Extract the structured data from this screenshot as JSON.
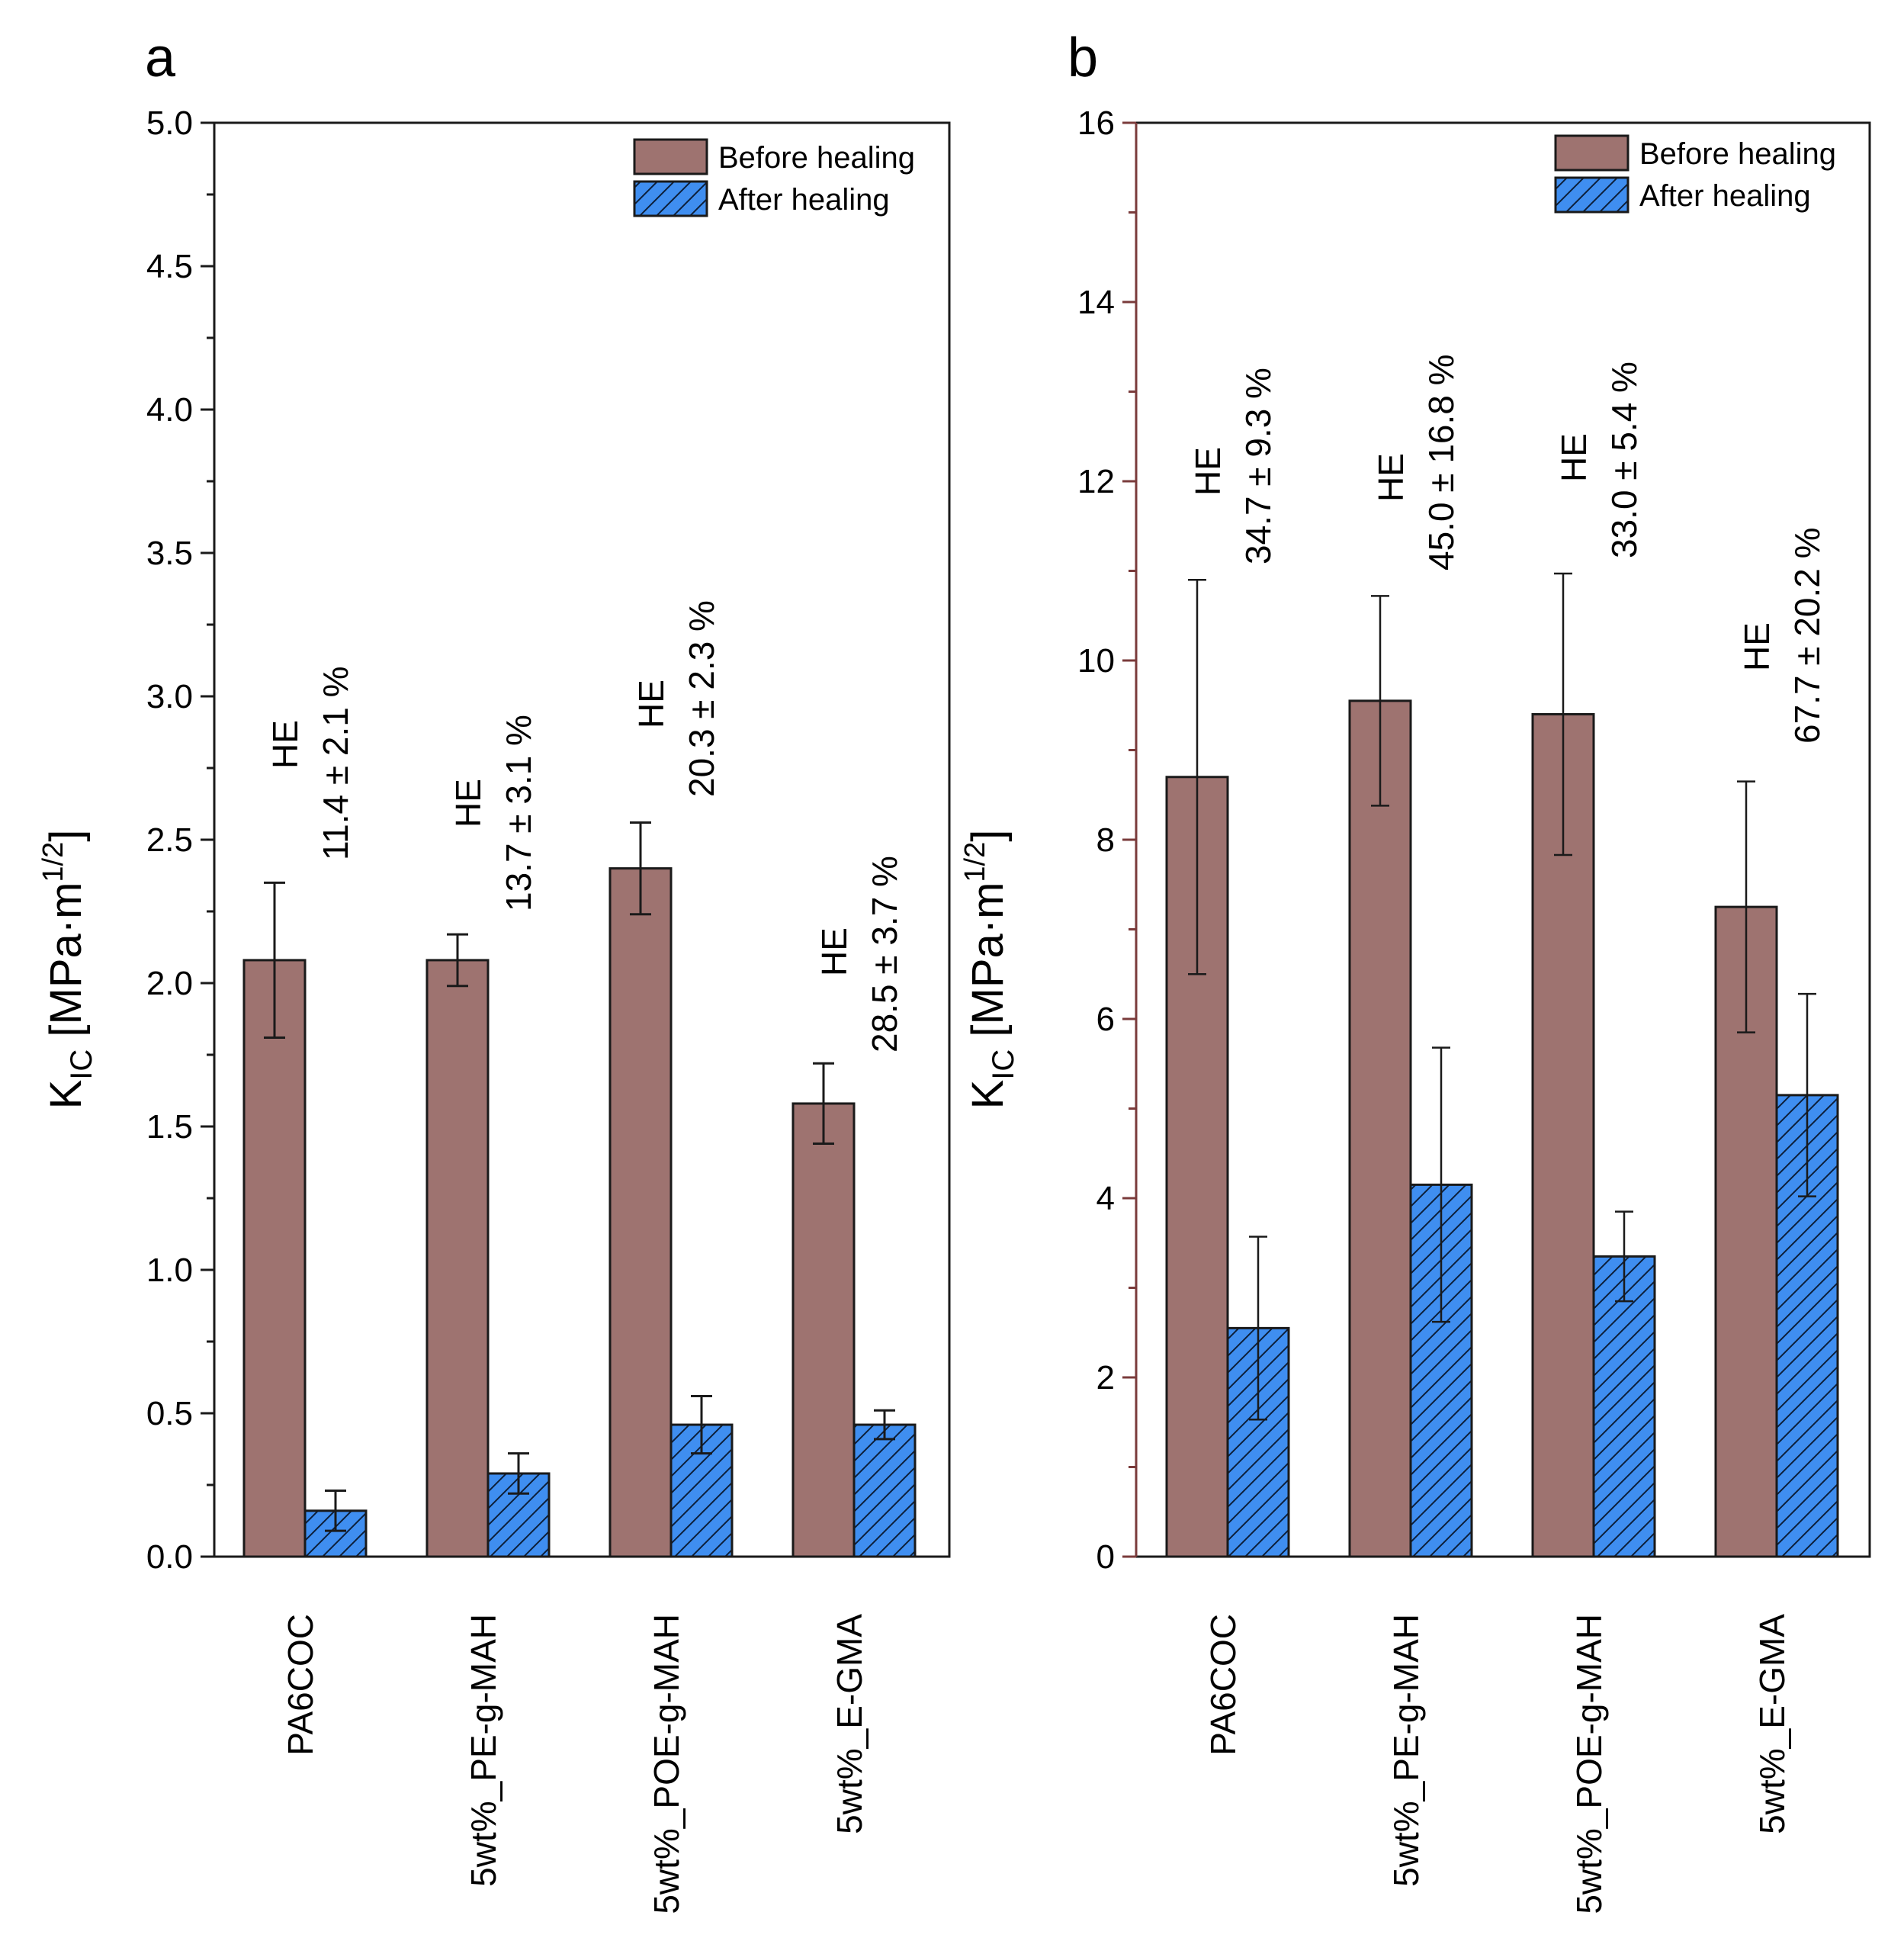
{
  "chart_data": [
    {
      "panel": "a",
      "type": "bar",
      "title": "",
      "ylabel": {
        "main": "K",
        "sub": "IC",
        "unit": "[MPa·m",
        "sup": "1/2",
        "close": "]"
      },
      "xlabel": "",
      "ylim": [
        0,
        5.0
      ],
      "yticks": [
        0.0,
        0.5,
        1.0,
        1.5,
        2.0,
        2.5,
        3.0,
        3.5,
        4.0,
        4.5,
        5.0
      ],
      "ytick_labels": [
        "0.0",
        "0.5",
        "1.0",
        "1.5",
        "2.0",
        "2.5",
        "3.0",
        "3.5",
        "4.0",
        "4.5",
        "5.0"
      ],
      "categories": [
        "PA6COC",
        "5wt%_PE-g-MAH",
        "5wt%_POE-g-MAH",
        "5wt%_E-GMA"
      ],
      "series": [
        {
          "name": "Before healing",
          "values": [
            2.08,
            2.08,
            2.4,
            1.58
          ],
          "errors": [
            0.27,
            0.09,
            0.16,
            0.14
          ],
          "color": "#9e7370",
          "hatch": false
        },
        {
          "name": "After healing",
          "values": [
            0.16,
            0.29,
            0.46,
            0.46
          ],
          "errors": [
            0.07,
            0.07,
            0.1,
            0.05
          ],
          "color": "#3f8ef0",
          "hatch": true
        }
      ],
      "annotations": [
        {
          "category": "PA6COC",
          "label": "HE",
          "value": "11.4 ± 2.1 %"
        },
        {
          "category": "5wt%_PE-g-MAH",
          "label": "HE",
          "value": "13.7 ± 3.1 %"
        },
        {
          "category": "5wt%_POE-g-MAH",
          "label": "HE",
          "value": "20.3 ± 2.3 %"
        },
        {
          "category": "5wt%_E-GMA",
          "label": "HE",
          "value": "28.5 ± 3.7 %"
        }
      ],
      "legend": "top-right"
    },
    {
      "panel": "b",
      "type": "bar",
      "title": "",
      "ylabel": {
        "main": "K",
        "sub": "IC",
        "unit": "[MPa·m",
        "sup": "1/2",
        "close": "]"
      },
      "xlabel": "",
      "ylim": [
        0,
        16
      ],
      "yticks": [
        0,
        2,
        4,
        6,
        8,
        10,
        12,
        14,
        16
      ],
      "ytick_labels": [
        "0",
        "2",
        "4",
        "6",
        "8",
        "10",
        "12",
        "14",
        "16"
      ],
      "categories": [
        "PA6COC",
        "5wt%_PE-g-MAH",
        "5wt%_POE-g-MAH",
        "5wt%_E-GMA"
      ],
      "series": [
        {
          "name": "Before healing",
          "values": [
            8.7,
            9.55,
            9.4,
            7.25
          ],
          "errors": [
            2.2,
            1.17,
            1.57,
            1.4
          ],
          "color": "#9e7370",
          "hatch": false
        },
        {
          "name": "After healing",
          "values": [
            2.55,
            4.15,
            3.35,
            5.15
          ],
          "errors": [
            1.02,
            1.53,
            0.5,
            1.13
          ],
          "color": "#3f8ef0",
          "hatch": true
        }
      ],
      "annotations": [
        {
          "category": "PA6COC",
          "label": "HE",
          "value": "34.7 ± 9.3 %"
        },
        {
          "category": "5wt%_PE-g-MAH",
          "label": "HE",
          "value": "45.0 ± 16.8 %"
        },
        {
          "category": "5wt%_POE-g-MAH",
          "label": "HE",
          "value": "33.0 ± 5.4 %"
        },
        {
          "category": "5wt%_E-GMA",
          "label": "HE",
          "value": "67.7 ± 20.2 %"
        }
      ],
      "legend": "top-right"
    }
  ]
}
